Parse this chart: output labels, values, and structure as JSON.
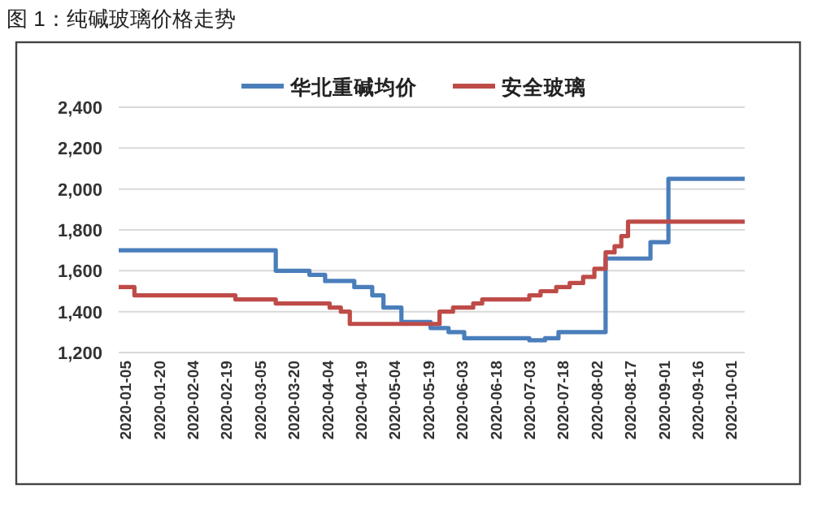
{
  "chart_data": {
    "type": "step",
    "title": "图 1：纯碱玻璃价格走势",
    "xlim": [
      "2020-01-02",
      "2020-10-07"
    ],
    "xticks": [
      "2020-01-05",
      "2020-01-20",
      "2020-02-04",
      "2020-02-19",
      "2020-03-05",
      "2020-03-20",
      "2020-04-04",
      "2020-04-19",
      "2020-05-04",
      "2020-05-19",
      "2020-06-03",
      "2020-06-18",
      "2020-07-03",
      "2020-07-18",
      "2020-08-02",
      "2020-08-17",
      "2020-09-01",
      "2020-09-16",
      "2020-10-01"
    ],
    "ylim": [
      1200,
      2400
    ],
    "yticks": [
      {
        "value": 1200,
        "label": "1,200"
      },
      {
        "value": 1400,
        "label": "1,400"
      },
      {
        "value": 1600,
        "label": "1,600"
      },
      {
        "value": 1800,
        "label": "1,800"
      },
      {
        "value": 2000,
        "label": "2,000"
      },
      {
        "value": 2200,
        "label": "2,200"
      },
      {
        "value": 2400,
        "label": "2,400"
      }
    ],
    "grid": "y",
    "legend": "top",
    "line_style": "solid",
    "series": [
      {
        "name": "华北重碱均价",
        "color": "#4a7ebb",
        "x": [
          "2020-01-02",
          "2020-03-12",
          "2020-03-27",
          "2020-04-03",
          "2020-04-16",
          "2020-04-24",
          "2020-04-29",
          "2020-05-07",
          "2020-05-20",
          "2020-05-28",
          "2020-06-04",
          "2020-07-03",
          "2020-07-10",
          "2020-07-16",
          "2020-08-06",
          "2020-08-26",
          "2020-09-03",
          "2020-10-07"
        ],
        "values": [
          1700,
          1600,
          1580,
          1550,
          1520,
          1480,
          1420,
          1350,
          1320,
          1300,
          1270,
          1260,
          1270,
          1300,
          1660,
          1740,
          2050,
          2050
        ]
      },
      {
        "name": "安全玻璃",
        "color": "#be4b48",
        "x": [
          "2020-01-02",
          "2020-01-09",
          "2020-02-23",
          "2020-03-12",
          "2020-04-05",
          "2020-04-10",
          "2020-04-14",
          "2020-05-24",
          "2020-05-30",
          "2020-06-08",
          "2020-06-12",
          "2020-07-03",
          "2020-07-08",
          "2020-07-15",
          "2020-07-21",
          "2020-07-27",
          "2020-08-01",
          "2020-08-06",
          "2020-08-10",
          "2020-08-13",
          "2020-08-16",
          "2020-10-07"
        ],
        "values": [
          1520,
          1480,
          1460,
          1440,
          1420,
          1400,
          1340,
          1400,
          1420,
          1440,
          1460,
          1480,
          1500,
          1520,
          1540,
          1570,
          1610,
          1690,
          1720,
          1770,
          1840,
          1840
        ]
      }
    ]
  }
}
